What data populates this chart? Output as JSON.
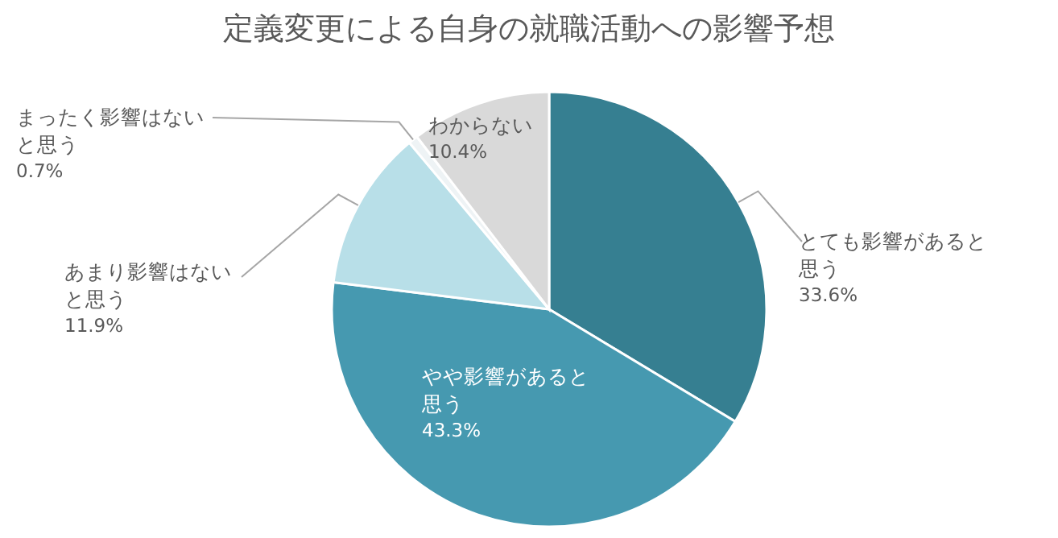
{
  "chart_data": {
    "type": "pie",
    "title": "定義変更による自身の就職活動への影響予想",
    "categories": [
      "とても影響があると思う",
      "やや影響があると思う",
      "あまり影響はないと思う",
      "まったく影響はないと思う",
      "わからない"
    ],
    "values": [
      33.6,
      43.3,
      11.9,
      0.7,
      10.4
    ],
    "value_labels": [
      "33.6%",
      "43.3%",
      "11.9%",
      "0.7%",
      "10.4%"
    ],
    "colors": [
      "#367f91",
      "#4699b0",
      "#b8dfe8",
      "#eef3f5",
      "#d9d9d9"
    ]
  }
}
